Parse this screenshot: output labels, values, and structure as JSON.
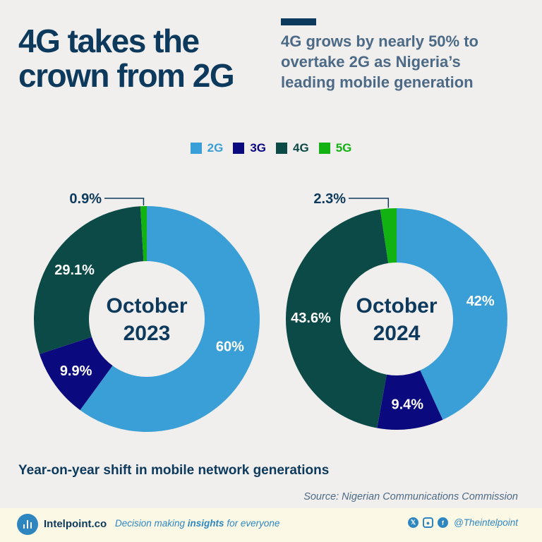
{
  "header": {
    "title_line1": "4G takes the",
    "title_line2": "crown from 2G",
    "subtitle_line1": "4G grows by nearly 50% to",
    "subtitle_line2": "overtake 2G as Nigeria’s",
    "subtitle_line3": "leading mobile generation"
  },
  "colors": {
    "2G": "#3a9fd6",
    "3G": "#0a0a7e",
    "4G": "#0c4a48",
    "5G": "#12b212",
    "title": "#0d3a5c",
    "background": "#f0efed"
  },
  "chart_data": [
    {
      "type": "pie",
      "center_label": [
        "October",
        "2023"
      ],
      "legend": [
        "2G",
        "3G",
        "4G",
        "5G"
      ],
      "slices": [
        {
          "name": "2G",
          "value": 60,
          "label": "60%"
        },
        {
          "name": "3G",
          "value": 9.9,
          "label": "9.9%"
        },
        {
          "name": "4G",
          "value": 29.1,
          "label": "29.1%"
        },
        {
          "name": "5G",
          "value": 0.9,
          "label": "0.9%"
        }
      ]
    },
    {
      "type": "pie",
      "center_label": [
        "October",
        "2024"
      ],
      "legend": [
        "2G",
        "3G",
        "4G",
        "5G"
      ],
      "slices": [
        {
          "name": "2G",
          "value": 42,
          "label": "42%"
        },
        {
          "name": "3G",
          "value": 9.4,
          "label": "9.4%"
        },
        {
          "name": "4G",
          "value": 43.6,
          "label": "43.6%"
        },
        {
          "name": "5G",
          "value": 2.3,
          "label": "2.3%"
        }
      ]
    }
  ],
  "caption": "Year-on-year shift in mobile network generations",
  "source": "Source: Nigerian Communications Commission",
  "footer": {
    "brand": "Intelpoint.co",
    "tagline_before": "Decision making ",
    "tagline_bold": "insights",
    "tagline_after": " for everyone",
    "handle": "@Theintelpoint",
    "icons": [
      "x-icon",
      "instagram-icon",
      "facebook-icon"
    ]
  }
}
